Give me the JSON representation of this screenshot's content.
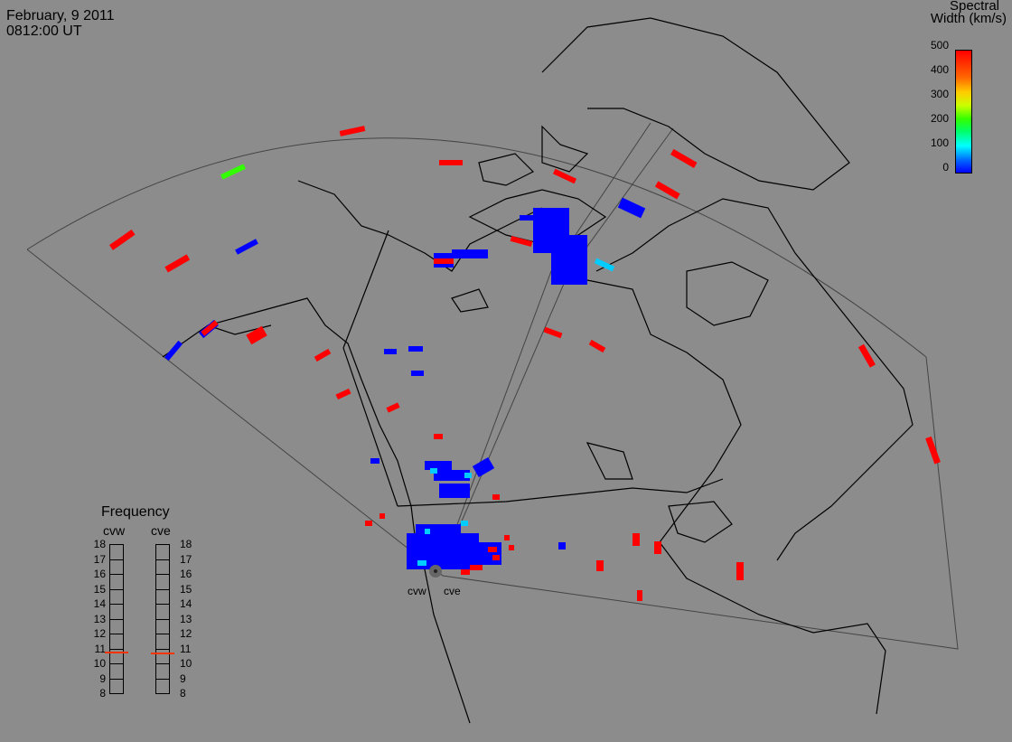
{
  "header": {
    "date": "February, 9 2011",
    "time": "0812:00 UT"
  },
  "legend": {
    "title_line1": "Spectral",
    "title_line2": "Width (km/s)",
    "ticks": [
      "500",
      "400",
      "300",
      "200",
      "100",
      "0"
    ],
    "colors": {
      "min": "#0000ff",
      "mid_low": "#00ffff",
      "mid": "#33ff00",
      "mid_high": "#ffcc00",
      "max": "#ff0000"
    }
  },
  "frequency": {
    "title": "Frequency",
    "radars": [
      "cvw",
      "cve"
    ],
    "scale": [
      "18",
      "17",
      "16",
      "15",
      "14",
      "13",
      "12",
      "11",
      "10",
      "9",
      "8"
    ],
    "current_mhz": {
      "cvw": 10.8,
      "cve": 10.7
    },
    "marker_color": "#ff3300"
  },
  "stations": {
    "west": "cvw",
    "east": "cve"
  },
  "map": {
    "background": "#8c8c8c",
    "line_color": "#000000",
    "fov_color": "#444444"
  }
}
